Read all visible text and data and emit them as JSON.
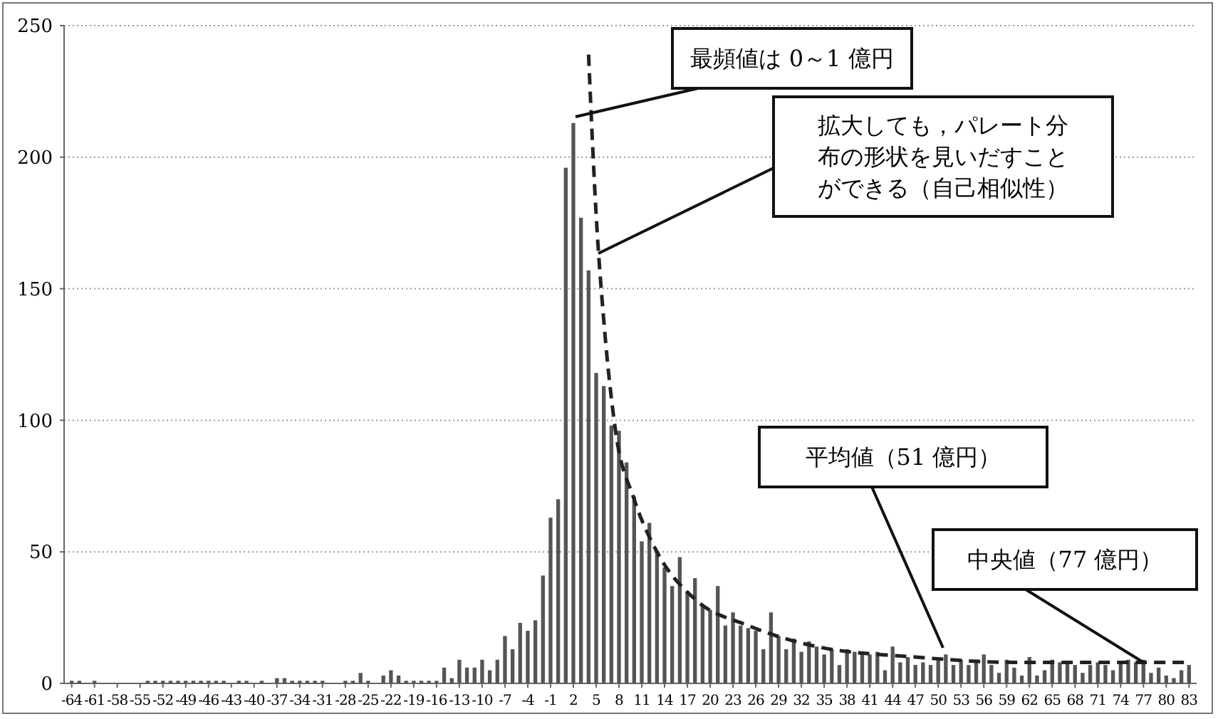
{
  "chart_data": {
    "type": "bar",
    "x": [
      -64,
      -63,
      -62,
      -61,
      -60,
      -59,
      -58,
      -57,
      -56,
      -55,
      -54,
      -53,
      -52,
      -51,
      -50,
      -49,
      -48,
      -47,
      -46,
      -45,
      -44,
      -43,
      -42,
      -41,
      -40,
      -39,
      -38,
      -37,
      -36,
      -35,
      -34,
      -33,
      -32,
      -31,
      -30,
      -29,
      -28,
      -27,
      -26,
      -25,
      -24,
      -23,
      -22,
      -21,
      -20,
      -19,
      -18,
      -17,
      -16,
      -15,
      -14,
      -13,
      -12,
      -11,
      -10,
      -9,
      -8,
      -7,
      -6,
      -5,
      -4,
      -3,
      -2,
      -1,
      0,
      1,
      2,
      3,
      4,
      5,
      6,
      7,
      8,
      9,
      10,
      11,
      12,
      13,
      14,
      15,
      16,
      17,
      18,
      19,
      20,
      21,
      22,
      23,
      24,
      25,
      26,
      27,
      28,
      29,
      30,
      31,
      32,
      33,
      34,
      35,
      36,
      37,
      38,
      39,
      40,
      41,
      42,
      43,
      44,
      45,
      46,
      47,
      48,
      49,
      50,
      51,
      52,
      53,
      54,
      55,
      56,
      57,
      58,
      59,
      60,
      61,
      62,
      63,
      64,
      65,
      66,
      67,
      68,
      69,
      70,
      71,
      72,
      73,
      74,
      75,
      76,
      77,
      78,
      79,
      80,
      81,
      82,
      83
    ],
    "series": [
      {
        "color": "#555555",
        "values": [
          1,
          1,
          0,
          1,
          0,
          0,
          0,
          0,
          0,
          0,
          1,
          1,
          1,
          1,
          1,
          1,
          1,
          1,
          1,
          1,
          1,
          0,
          1,
          1,
          0,
          1,
          0,
          2,
          2,
          1,
          1,
          1,
          1,
          1,
          0,
          0,
          1,
          1,
          4,
          1,
          0,
          3,
          5,
          3,
          1,
          1,
          1,
          1,
          1,
          6,
          2,
          9,
          6,
          6,
          9,
          5,
          9,
          18,
          13,
          23,
          20,
          24,
          41,
          63,
          70,
          196,
          213,
          177,
          157,
          118,
          113,
          98,
          96,
          84,
          71,
          54,
          61,
          50,
          44,
          37,
          48,
          35,
          40,
          30,
          28,
          37,
          22,
          27,
          22,
          21,
          20,
          13,
          27,
          18,
          13,
          17,
          12,
          16,
          14,
          11,
          13,
          7,
          13,
          12,
          12,
          11,
          12,
          5,
          14,
          8,
          10,
          7,
          8,
          7,
          9,
          11,
          7,
          9,
          7,
          9,
          11,
          7,
          4,
          9,
          6,
          3,
          10,
          3,
          5,
          9,
          8,
          8,
          7,
          4,
          7,
          8,
          7,
          5,
          8,
          9,
          8,
          9,
          4,
          6,
          3,
          2,
          5,
          7
        ]
      },
      {
        "type": "line",
        "color": "#222222",
        "line_style": "dashed",
        "x": [
          4,
          5,
          6,
          7.5,
          10,
          13,
          18,
          25,
          34,
          47,
          60,
          79,
          83
        ],
        "values": [
          239,
          178,
          138,
          97,
          70,
          50,
          32,
          22,
          14,
          10,
          8,
          8,
          8
        ]
      }
    ],
    "xlim": [
      -65,
      84
    ],
    "xticks": [
      -64,
      -61,
      -58,
      -55,
      -52,
      -49,
      -46,
      -43,
      -40,
      -37,
      -34,
      -31,
      -28,
      -25,
      -22,
      -19,
      -16,
      -13,
      -10,
      -7,
      -4,
      -1,
      2,
      5,
      8,
      11,
      14,
      17,
      20,
      23,
      26,
      29,
      32,
      35,
      38,
      41,
      44,
      47,
      50,
      53,
      56,
      59,
      62,
      65,
      68,
      71,
      74,
      77,
      80,
      83
    ],
    "ylim": [
      0,
      250
    ],
    "yticks": [
      0,
      50,
      100,
      150,
      200,
      250
    ],
    "grid": "y",
    "annotations": [
      "最頻値は 0～1 億円",
      "拡大しても，パレート分布の形状を見いだすことができる（自己相似性）",
      "平均値（51 億円）",
      {
        "text": "中央値（77 億円）",
        "x": 77,
        "y": 8
      }
    ]
  }
}
